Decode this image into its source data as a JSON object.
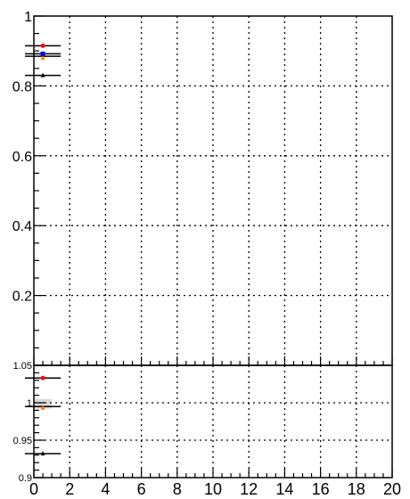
{
  "chart_data": [
    {
      "type": "scatter",
      "panel": "top",
      "ylim": [
        0,
        1.0
      ],
      "xlim": [
        0,
        20
      ],
      "grid": true,
      "yticks": [
        {
          "value": 0.2,
          "label": "0.2"
        },
        {
          "value": 0.4,
          "label": "0.4"
        },
        {
          "value": 0.6,
          "label": "0.6"
        },
        {
          "value": 0.8,
          "label": "0.8"
        },
        {
          "value": 1.0,
          "label": "1"
        }
      ],
      "series": [
        {
          "color": "#ff0000",
          "marker": "circle",
          "points": [
            {
              "x": 0.5,
              "y": 0.915,
              "xerr": 1.0
            }
          ]
        },
        {
          "color": "#0000ff",
          "marker": "square",
          "points": [
            {
              "x": 0.5,
              "y": 0.892,
              "xerr": 1.0
            }
          ]
        },
        {
          "color": "#000000",
          "marker": "line",
          "points": [
            {
              "x": 0.5,
              "y": 0.885,
              "xerr": 1.0
            }
          ]
        },
        {
          "color": "#ff8000",
          "marker": "triangle",
          "points": [
            {
              "x": 0.5,
              "y": 0.88,
              "xerr": 0.0
            }
          ]
        },
        {
          "color": "#000000",
          "marker": "triangle",
          "points": [
            {
              "x": 0.5,
              "y": 0.83,
              "xerr": 1.0
            }
          ]
        }
      ]
    },
    {
      "type": "scatter",
      "panel": "ratio",
      "ylim": [
        0.9,
        1.05
      ],
      "xlim": [
        0,
        20
      ],
      "grid": true,
      "band": {
        "y_low": 0.992,
        "y_high": 1.005,
        "x_low": 0,
        "x_high": 1,
        "color": "#d9d9d9"
      },
      "yticks": [
        {
          "value": 0.9,
          "label": "0.9"
        },
        {
          "value": 0.95,
          "label": "0.95"
        },
        {
          "value": 1.0,
          "label": "1"
        },
        {
          "value": 1.05,
          "label": "1.05"
        }
      ],
      "xticks": [
        {
          "value": 0,
          "label": "0"
        },
        {
          "value": 2,
          "label": "2"
        },
        {
          "value": 4,
          "label": "4"
        },
        {
          "value": 6,
          "label": "6"
        },
        {
          "value": 8,
          "label": "8"
        },
        {
          "value": 10,
          "label": "10"
        },
        {
          "value": 12,
          "label": "12"
        },
        {
          "value": 14,
          "label": "14"
        },
        {
          "value": 16,
          "label": "16"
        },
        {
          "value": 18,
          "label": "18"
        },
        {
          "value": 20,
          "label": "20"
        }
      ],
      "series": [
        {
          "color": "#ff0000",
          "marker": "circle",
          "points": [
            {
              "x": 0.5,
              "y": 1.033,
              "xerr": 1.0
            }
          ]
        },
        {
          "color": "#000000",
          "marker": "line",
          "points": [
            {
              "x": 0.5,
              "y": 0.995,
              "xerr": 1.0
            }
          ]
        },
        {
          "color": "#ff8000",
          "marker": "triangle",
          "points": [
            {
              "x": 0.5,
              "y": 0.993,
              "xerr": 0.0
            }
          ]
        },
        {
          "color": "#000000",
          "marker": "triangle",
          "points": [
            {
              "x": 0.5,
              "y": 0.932,
              "xerr": 1.0
            }
          ]
        }
      ]
    }
  ]
}
